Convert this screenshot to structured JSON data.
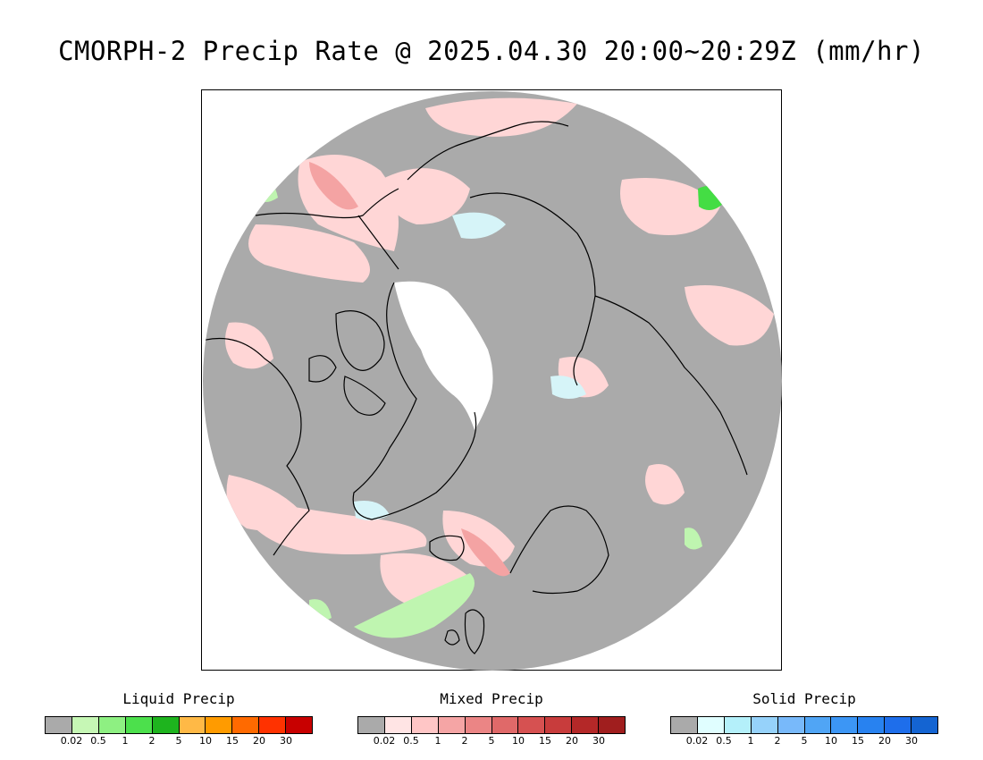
{
  "title": "CMORPH-2 Precip Rate @ 2025.04.30 20:00~20:29Z (mm/hr)",
  "map": {
    "projection": "north-polar-stereographic",
    "colors": {
      "background": "#aaaaaa",
      "ice_sheet": "#ffffff",
      "coastline": "#000000",
      "light_mixed": "#ffd6d6",
      "moderate_mixed": "#f4a3a3",
      "light_liquid": "#bff5b0",
      "moderate_liquid": "#44dd44",
      "light_solid": "#d6f4f8"
    }
  },
  "legends": [
    {
      "title": "Liquid Precip",
      "colors": [
        "#aaaaaa",
        "#c6f7b5",
        "#8ef082",
        "#4ce04c",
        "#1eb41e",
        "#ffb946",
        "#ff9b00",
        "#ff6a00",
        "#ff3200",
        "#c80000"
      ],
      "ticks": [
        "0.02",
        "0.5",
        "1",
        "2",
        "5",
        "10",
        "15",
        "20",
        "30"
      ]
    },
    {
      "title": "Mixed Precip",
      "colors": [
        "#aaaaaa",
        "#ffe4e4",
        "#ffc6c6",
        "#f5a5a5",
        "#eb8585",
        "#e06969",
        "#d65151",
        "#c83c3c",
        "#b42828",
        "#a01e1e"
      ],
      "ticks": [
        "0.02",
        "0.5",
        "1",
        "2",
        "5",
        "10",
        "15",
        "20",
        "30"
      ]
    },
    {
      "title": "Solid Precip",
      "colors": [
        "#aaaaaa",
        "#e0feff",
        "#b4f0fa",
        "#96d2fa",
        "#78b9fa",
        "#50a5f5",
        "#3c96f5",
        "#2882f0",
        "#1e6eeb",
        "#1464d2"
      ],
      "ticks": [
        "0.02",
        "0.5",
        "1",
        "2",
        "5",
        "10",
        "15",
        "20",
        "30"
      ]
    }
  ]
}
